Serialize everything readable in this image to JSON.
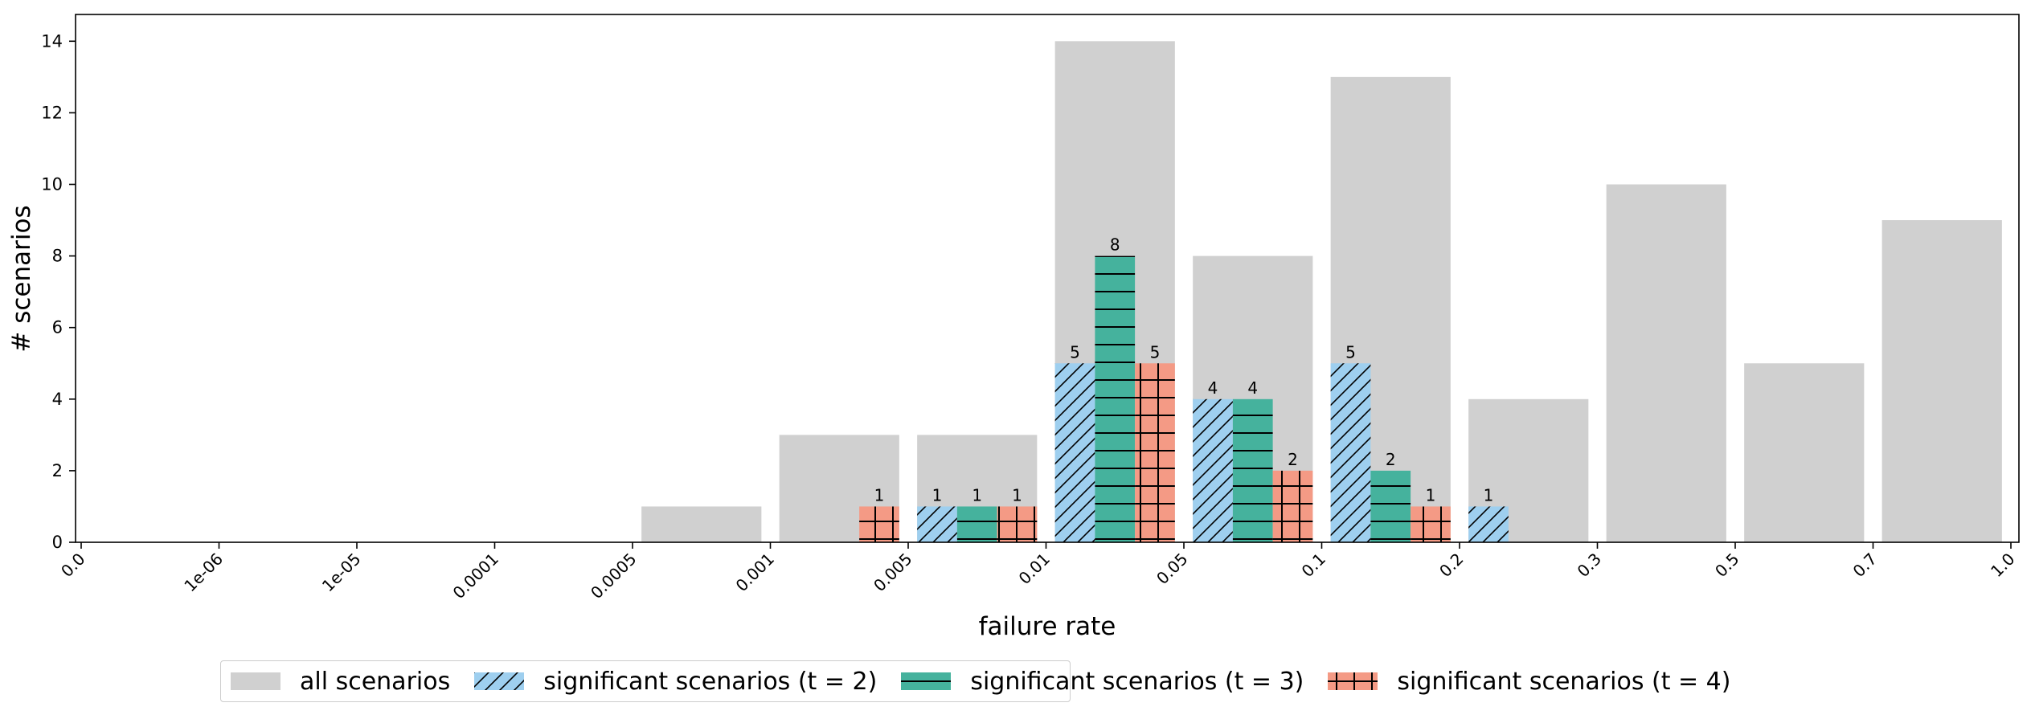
{
  "chart_data": {
    "type": "bar",
    "xlabel": "failure rate",
    "ylabel": "# scenarios",
    "ylim": [
      0,
      14.6
    ],
    "yticks": [
      0,
      2,
      4,
      6,
      8,
      10,
      12,
      14
    ],
    "bin_edges": [
      "0.0",
      "1e-06",
      "1e-05",
      "0.0001",
      "0.0005",
      "0.001",
      "0.005",
      "0.01",
      "0.05",
      "0.1",
      "0.2",
      "0.3",
      "0.5",
      "0.7",
      "1.0"
    ],
    "categories": [
      "0.0–1e-06",
      "1e-06–1e-05",
      "1e-05–0.0001",
      "0.0001–0.0005",
      "0.0005–0.001",
      "0.001–0.005",
      "0.005–0.01",
      "0.01–0.05",
      "0.05–0.1",
      "0.1–0.2",
      "0.2–0.3",
      "0.3–0.5",
      "0.5–0.7",
      "0.7–1.0"
    ],
    "series": [
      {
        "name": "all scenarios",
        "color": "#d0d0d0",
        "pattern": "none",
        "values": [
          0,
          0,
          0,
          0,
          1,
          3,
          3,
          14,
          8,
          13,
          4,
          10,
          5,
          9
        ]
      },
      {
        "name": "significant scenarios (t = 2)",
        "color": "#9ecfef",
        "pattern": "diagonal",
        "values": [
          0,
          0,
          0,
          0,
          0,
          0,
          1,
          5,
          4,
          5,
          1,
          0,
          0,
          0
        ]
      },
      {
        "name": "significant scenarios (t = 3)",
        "color": "#45b29d",
        "pattern": "horizontal",
        "values": [
          0,
          0,
          0,
          0,
          0,
          0,
          1,
          8,
          4,
          2,
          0,
          0,
          0,
          0
        ]
      },
      {
        "name": "significant scenarios (t = 4)",
        "color": "#f49a85",
        "pattern": "cross",
        "values": [
          0,
          0,
          0,
          0,
          0,
          1,
          1,
          5,
          2,
          1,
          0,
          0,
          0,
          0
        ]
      }
    ],
    "legend_position": "bottom-center",
    "grid": false
  }
}
